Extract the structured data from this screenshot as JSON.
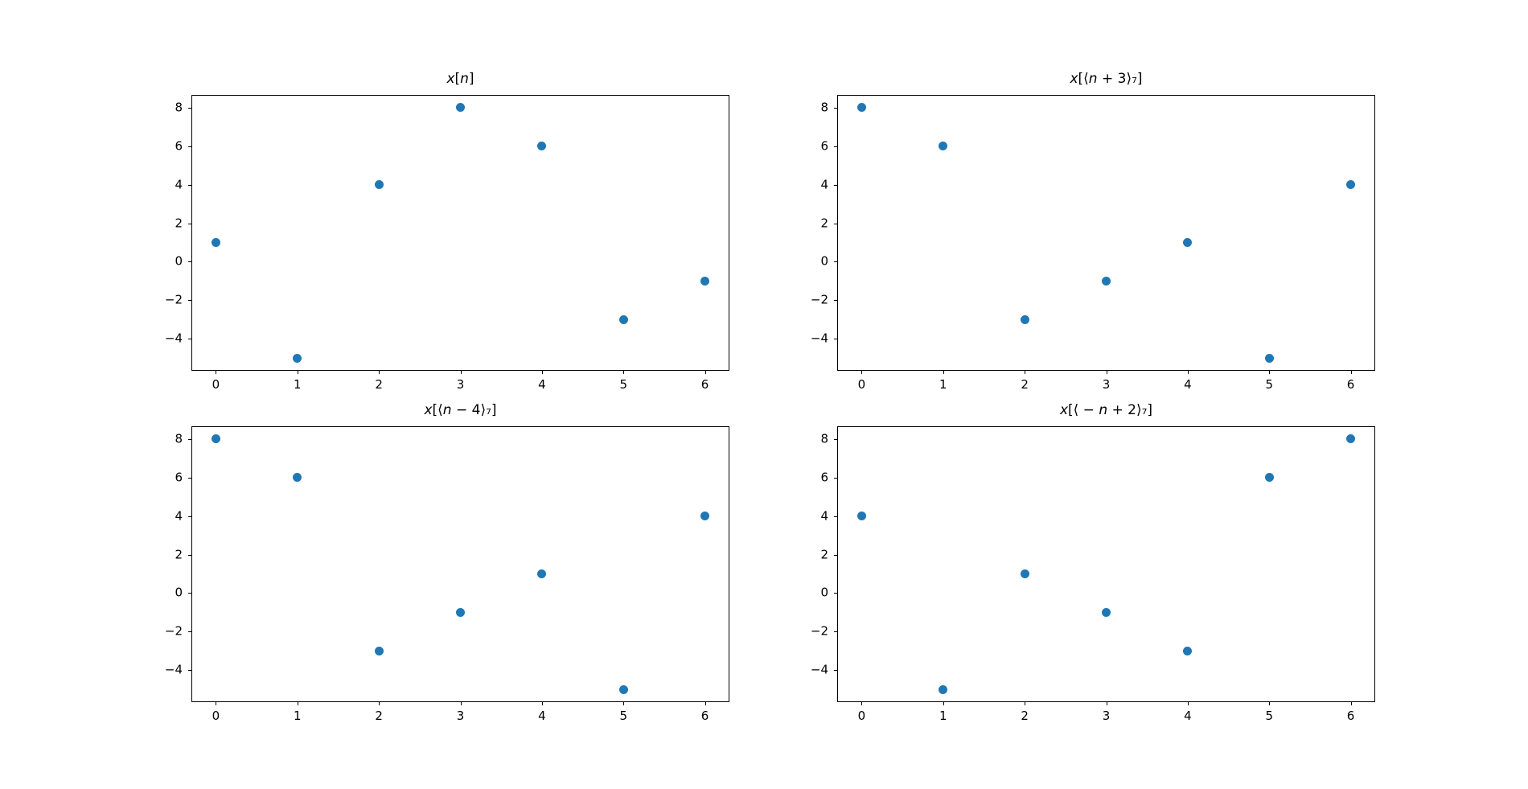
{
  "figure": {
    "background": "#ffffff",
    "marker_color": "#1f77b4",
    "spine_color": "#000000"
  },
  "chart_data": [
    {
      "type": "scatter",
      "title": "x[n]",
      "x": [
        0,
        1,
        2,
        3,
        4,
        5,
        6
      ],
      "y": [
        1,
        -5,
        4,
        8,
        6,
        -3,
        -1
      ],
      "xlim": [
        -0.3,
        6.3
      ],
      "ylim": [
        -5.65,
        8.65
      ],
      "xticks": [
        0,
        1,
        2,
        3,
        4,
        5,
        6
      ],
      "yticks": [
        8,
        6,
        4,
        2,
        0,
        -2,
        -4
      ],
      "xtick_labels": [
        "0",
        "1",
        "2",
        "3",
        "4",
        "5",
        "6"
      ],
      "ytick_labels": [
        "8",
        "6",
        "4",
        "2",
        "0",
        "−2",
        "−4"
      ],
      "grid": false,
      "legend": null
    },
    {
      "type": "scatter",
      "title": "x[⟨n + 3⟩₇]",
      "x": [
        0,
        1,
        2,
        3,
        4,
        5,
        6
      ],
      "y": [
        8,
        6,
        -3,
        -1,
        1,
        -5,
        4
      ],
      "xlim": [
        -0.3,
        6.3
      ],
      "ylim": [
        -5.65,
        8.65
      ],
      "xticks": [
        0,
        1,
        2,
        3,
        4,
        5,
        6
      ],
      "yticks": [
        8,
        6,
        4,
        2,
        0,
        -2,
        -4
      ],
      "xtick_labels": [
        "0",
        "1",
        "2",
        "3",
        "4",
        "5",
        "6"
      ],
      "ytick_labels": [
        "8",
        "6",
        "4",
        "2",
        "0",
        "−2",
        "−4"
      ],
      "grid": false,
      "legend": null
    },
    {
      "type": "scatter",
      "title": "x[⟨n − 4⟩₇]",
      "x": [
        0,
        1,
        2,
        3,
        4,
        5,
        6
      ],
      "y": [
        8,
        6,
        -3,
        -1,
        1,
        -5,
        4
      ],
      "xlim": [
        -0.3,
        6.3
      ],
      "ylim": [
        -5.65,
        8.65
      ],
      "xticks": [
        0,
        1,
        2,
        3,
        4,
        5,
        6
      ],
      "yticks": [
        8,
        6,
        4,
        2,
        0,
        -2,
        -4
      ],
      "xtick_labels": [
        "0",
        "1",
        "2",
        "3",
        "4",
        "5",
        "6"
      ],
      "ytick_labels": [
        "8",
        "6",
        "4",
        "2",
        "0",
        "−2",
        "−4"
      ],
      "grid": false,
      "legend": null
    },
    {
      "type": "scatter",
      "title": "x[⟨ − n + 2⟩₇]",
      "x": [
        0,
        1,
        2,
        3,
        4,
        5,
        6
      ],
      "y": [
        4,
        -5,
        1,
        -1,
        -3,
        6,
        8
      ],
      "xlim": [
        -0.3,
        6.3
      ],
      "ylim": [
        -5.65,
        8.65
      ],
      "xticks": [
        0,
        1,
        2,
        3,
        4,
        5,
        6
      ],
      "yticks": [
        8,
        6,
        4,
        2,
        0,
        -2,
        -4
      ],
      "xtick_labels": [
        "0",
        "1",
        "2",
        "3",
        "4",
        "5",
        "6"
      ],
      "ytick_labels": [
        "8",
        "6",
        "4",
        "2",
        "0",
        "−2",
        "−4"
      ],
      "grid": false,
      "legend": null
    }
  ]
}
